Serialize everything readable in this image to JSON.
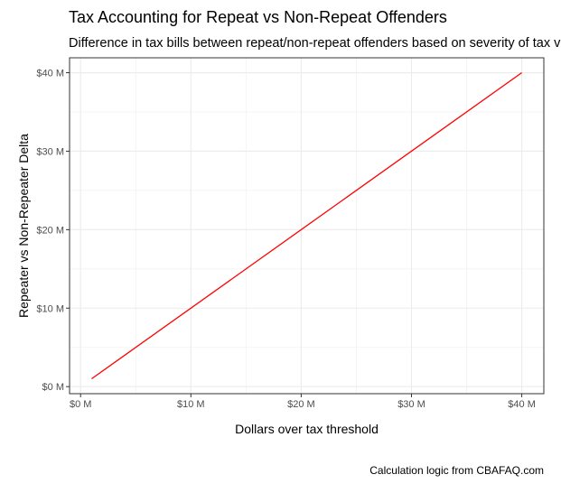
{
  "chart_data": {
    "type": "line",
    "title": "Tax Accounting for Repeat vs Non-Repeat Offenders",
    "subtitle": "Difference in tax bills between repeat/non-repeat offenders based on severity of tax v",
    "caption": "Calculation logic from CBAFAQ.com",
    "xlabel": "Dollars over tax threshold",
    "ylabel": "Repeater vs Non-Repeater Delta",
    "xlim": [
      -1,
      42
    ],
    "ylim": [
      -0.9,
      41.9
    ],
    "x_ticks": [
      {
        "value": 0,
        "label": "$0 M"
      },
      {
        "value": 10,
        "label": "$10 M"
      },
      {
        "value": 20,
        "label": "$20 M"
      },
      {
        "value": 30,
        "label": "$30 M"
      },
      {
        "value": 40,
        "label": "$40 M"
      }
    ],
    "y_ticks": [
      {
        "value": 0,
        "label": "$0 M"
      },
      {
        "value": 10,
        "label": "$10 M"
      },
      {
        "value": 20,
        "label": "$20 M"
      },
      {
        "value": 30,
        "label": "$30 M"
      },
      {
        "value": 40,
        "label": "$40 M"
      }
    ],
    "grid": true,
    "series": [
      {
        "color": "#ff0000",
        "x": [
          1,
          40
        ],
        "y": [
          1,
          40
        ]
      }
    ]
  }
}
